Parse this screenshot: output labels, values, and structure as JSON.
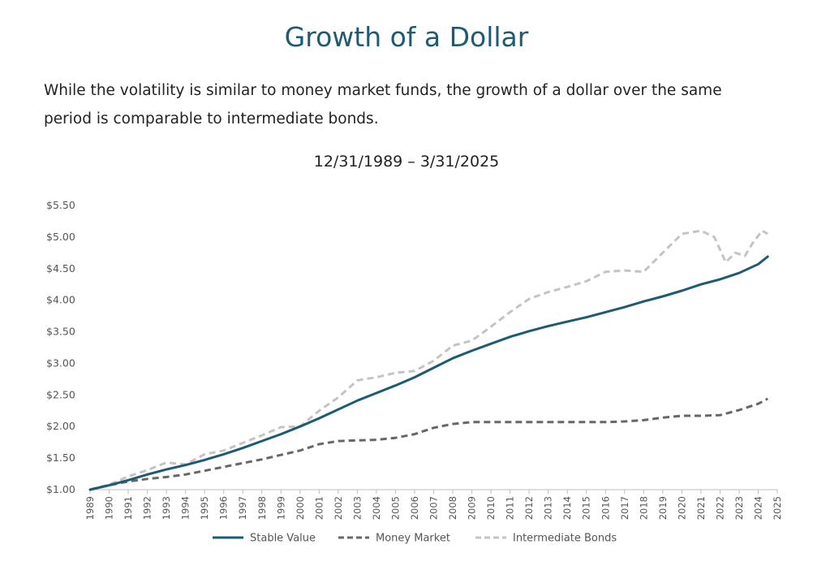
{
  "header": {
    "title": "Growth of a Dollar",
    "intro": "While the volatility is similar to money market funds, the growth of a dollar over the same period is comparable to intermediate bonds."
  },
  "chart_data": {
    "type": "line",
    "title": "12/31/1989 – 3/31/2025",
    "xlabel": "",
    "ylabel": "",
    "xlim": [
      1989,
      2025
    ],
    "ylim": [
      1.0,
      5.5
    ],
    "y_ticks": [
      "$1.00",
      "$1.50",
      "$2.00",
      "$2.50",
      "$3.00",
      "$3.50",
      "$4.00",
      "$4.50",
      "$5.00",
      "$5.50"
    ],
    "x_ticks": [
      "1989",
      "1990",
      "1991",
      "1992",
      "1993",
      "1994",
      "1995",
      "1996",
      "1997",
      "1998",
      "1999",
      "2000",
      "2001",
      "2002",
      "2003",
      "2004",
      "2005",
      "2006",
      "2007",
      "2008",
      "2009",
      "2010",
      "2011",
      "2012",
      "2013",
      "2014",
      "2015",
      "2016",
      "2017",
      "2018",
      "2019",
      "2020",
      "2021",
      "2022",
      "2023",
      "2024",
      "2025"
    ],
    "grid": false,
    "legend_position": "bottom-center",
    "series": [
      {
        "name": "Stable Value",
        "color": "#1d5a73",
        "style": "solid",
        "points": [
          [
            1989.0,
            1.0
          ],
          [
            1990,
            1.07
          ],
          [
            1991,
            1.15
          ],
          [
            1992,
            1.24
          ],
          [
            1993,
            1.32
          ],
          [
            1994,
            1.39
          ],
          [
            1995,
            1.47
          ],
          [
            1996,
            1.56
          ],
          [
            1997,
            1.66
          ],
          [
            1998,
            1.77
          ],
          [
            1999,
            1.88
          ],
          [
            2000,
            2.0
          ],
          [
            2001,
            2.13
          ],
          [
            2002,
            2.27
          ],
          [
            2003,
            2.41
          ],
          [
            2004,
            2.53
          ],
          [
            2005,
            2.65
          ],
          [
            2006,
            2.78
          ],
          [
            2007,
            2.93
          ],
          [
            2008,
            3.08
          ],
          [
            2009,
            3.2
          ],
          [
            2010,
            3.31
          ],
          [
            2011,
            3.42
          ],
          [
            2012,
            3.51
          ],
          [
            2013,
            3.59
          ],
          [
            2014,
            3.66
          ],
          [
            2015,
            3.73
          ],
          [
            2016,
            3.81
          ],
          [
            2017,
            3.89
          ],
          [
            2018,
            3.98
          ],
          [
            2019,
            4.06
          ],
          [
            2020,
            4.15
          ],
          [
            2021,
            4.25
          ],
          [
            2022,
            4.33
          ],
          [
            2023,
            4.43
          ],
          [
            2024,
            4.57
          ],
          [
            2024.5,
            4.69
          ]
        ]
      },
      {
        "name": "Money Market",
        "color": "#676767",
        "style": "dashed",
        "points": [
          [
            1989.0,
            1.0
          ],
          [
            1990,
            1.07
          ],
          [
            1991,
            1.13
          ],
          [
            1992,
            1.17
          ],
          [
            1993,
            1.2
          ],
          [
            1994,
            1.24
          ],
          [
            1995,
            1.3
          ],
          [
            1996,
            1.36
          ],
          [
            1997,
            1.42
          ],
          [
            1998,
            1.48
          ],
          [
            1999,
            1.55
          ],
          [
            2000,
            1.62
          ],
          [
            2001,
            1.72
          ],
          [
            2002,
            1.77
          ],
          [
            2003,
            1.78
          ],
          [
            2004,
            1.79
          ],
          [
            2005,
            1.82
          ],
          [
            2006,
            1.88
          ],
          [
            2007,
            1.98
          ],
          [
            2008,
            2.04
          ],
          [
            2009,
            2.07
          ],
          [
            2010,
            2.07
          ],
          [
            2011,
            2.07
          ],
          [
            2012,
            2.07
          ],
          [
            2013,
            2.07
          ],
          [
            2014,
            2.07
          ],
          [
            2015,
            2.07
          ],
          [
            2016,
            2.07
          ],
          [
            2017,
            2.08
          ],
          [
            2018,
            2.1
          ],
          [
            2019,
            2.14
          ],
          [
            2020,
            2.17
          ],
          [
            2021,
            2.17
          ],
          [
            2022,
            2.18
          ],
          [
            2023,
            2.26
          ],
          [
            2024,
            2.36
          ],
          [
            2024.5,
            2.44
          ]
        ]
      },
      {
        "name": "Intermediate Bonds",
        "color": "#c4c4c4",
        "style": "dashed",
        "points": [
          [
            1989.0,
            1.0
          ],
          [
            1990,
            1.08
          ],
          [
            1991,
            1.21
          ],
          [
            1992,
            1.31
          ],
          [
            1993,
            1.43
          ],
          [
            1994,
            1.4
          ],
          [
            1995,
            1.56
          ],
          [
            1996,
            1.62
          ],
          [
            1997,
            1.74
          ],
          [
            1998,
            1.86
          ],
          [
            1999,
            1.99
          ],
          [
            2000,
            2.0
          ],
          [
            2001,
            2.25
          ],
          [
            2002,
            2.46
          ],
          [
            2003,
            2.73
          ],
          [
            2004,
            2.78
          ],
          [
            2005,
            2.85
          ],
          [
            2006,
            2.88
          ],
          [
            2007,
            3.04
          ],
          [
            2008,
            3.28
          ],
          [
            2009,
            3.36
          ],
          [
            2010,
            3.58
          ],
          [
            2011,
            3.81
          ],
          [
            2012,
            4.02
          ],
          [
            2013,
            4.13
          ],
          [
            2014,
            4.21
          ],
          [
            2015,
            4.3
          ],
          [
            2016,
            4.45
          ],
          [
            2017,
            4.47
          ],
          [
            2018,
            4.45
          ],
          [
            2019,
            4.75
          ],
          [
            2020,
            5.05
          ],
          [
            2021,
            5.1
          ],
          [
            2021.7,
            5.0
          ],
          [
            2022.3,
            4.6
          ],
          [
            2022.8,
            4.75
          ],
          [
            2023.3,
            4.7
          ],
          [
            2023.7,
            4.9
          ],
          [
            2024.2,
            5.1
          ],
          [
            2024.5,
            5.05
          ]
        ]
      }
    ]
  }
}
